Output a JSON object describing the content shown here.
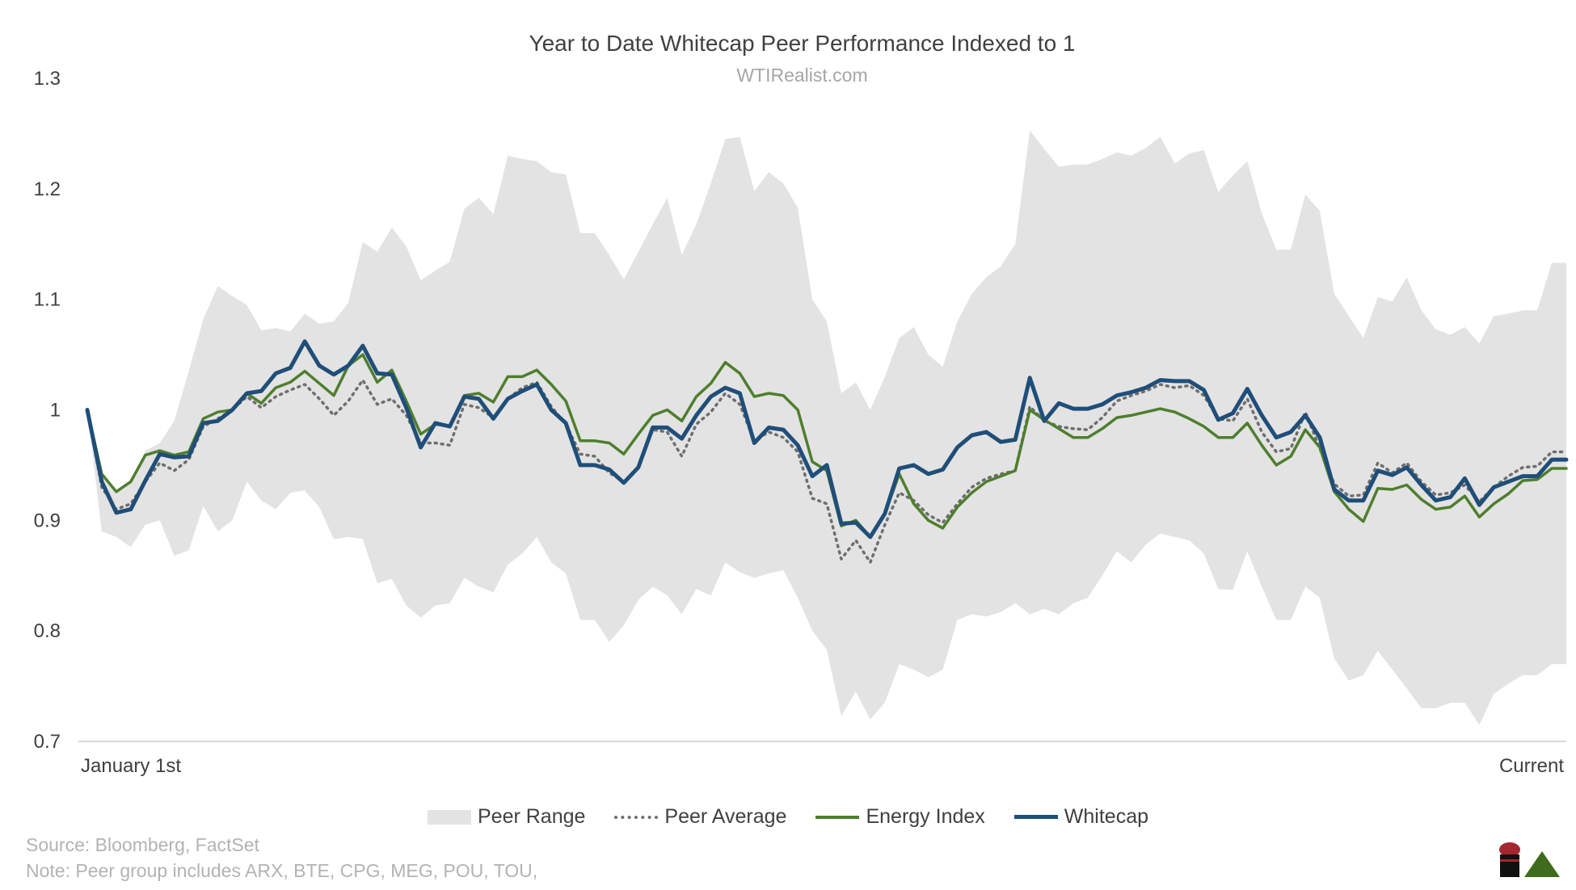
{
  "title": "Year to Date Whitecap Peer Performance Indexed to 1",
  "subtitle": "WTIRealist.com",
  "source_line": "Source: Bloomberg, FactSet",
  "note_line": "Note: Peer group includes ARX, BTE, CPG, MEG, POU, TOU,",
  "chart_data": {
    "type": "line",
    "title": "Year to Date Whitecap Peer Performance Indexed to 1",
    "subtitle": "WTIRealist.com",
    "xlabel": "",
    "ylabel": "",
    "ylim": [
      0.7,
      1.3
    ],
    "y_ticks": [
      "0.7",
      "0.8",
      "0.9",
      "1",
      "1.1",
      "1.2",
      "1.3"
    ],
    "x_tick_labels": [
      "January 1st",
      "Current"
    ],
    "grid": false,
    "legend_position": "bottom",
    "colors": {
      "range": "#e3e3e3",
      "average": "#6e6e6e",
      "energy": "#4e7e2e",
      "whitecap": "#1f4e79"
    },
    "series": [
      {
        "name": "Whitecap",
        "style": "solid-thick",
        "values": [
          1.0,
          0.935,
          0.907,
          0.91,
          0.936,
          0.96,
          0.957,
          0.958,
          0.988,
          0.99,
          1.0,
          1.015,
          1.017,
          1.033,
          1.038,
          1.062,
          1.04,
          1.032,
          1.04,
          1.058,
          1.033,
          1.032,
          1.002,
          0.966,
          0.988,
          0.985,
          1.012,
          1.01,
          0.992,
          1.01,
          1.017,
          1.023,
          1.0,
          0.988,
          0.95,
          0.95,
          0.946,
          0.934,
          0.948,
          0.984,
          0.984,
          0.974,
          0.995,
          1.012,
          1.02,
          1.015,
          0.97,
          0.984,
          0.982,
          0.968,
          0.94,
          0.95,
          0.897,
          0.898,
          0.885,
          0.906,
          0.947,
          0.95,
          0.942,
          0.946,
          0.966,
          0.977,
          0.98,
          0.971,
          0.973,
          1.029,
          0.99,
          1.006,
          1.001,
          1.001,
          1.005,
          1.013,
          1.016,
          1.02,
          1.027,
          1.026,
          1.026,
          1.018,
          0.991,
          0.997,
          1.019,
          0.995,
          0.975,
          0.98,
          0.995,
          0.975,
          0.928,
          0.918,
          0.918,
          0.945,
          0.941,
          0.948,
          0.932,
          0.918,
          0.921,
          0.938,
          0.914,
          0.93,
          0.935,
          0.94,
          0.94,
          0.955,
          0.955
        ]
      },
      {
        "name": "Energy Index",
        "style": "solid",
        "values": [
          1.0,
          0.942,
          0.926,
          0.935,
          0.959,
          0.963,
          0.959,
          0.962,
          0.992,
          0.998,
          1.0,
          1.015,
          1.006,
          1.02,
          1.025,
          1.035,
          1.024,
          1.013,
          1.04,
          1.05,
          1.025,
          1.036,
          1.008,
          0.978,
          0.987,
          0.985,
          1.013,
          1.015,
          1.007,
          1.03,
          1.03,
          1.036,
          1.023,
          1.008,
          0.972,
          0.972,
          0.97,
          0.96,
          0.978,
          0.995,
          1.0,
          0.99,
          1.012,
          1.024,
          1.043,
          1.033,
          1.012,
          1.015,
          1.013,
          1.0,
          0.953,
          0.945,
          0.895,
          0.9,
          0.885,
          0.906,
          0.942,
          0.915,
          0.9,
          0.893,
          0.912,
          0.925,
          0.935,
          0.94,
          0.945,
          1.0,
          0.991,
          0.983,
          0.975,
          0.975,
          0.983,
          0.993,
          0.995,
          0.998,
          1.001,
          0.998,
          0.992,
          0.985,
          0.975,
          0.975,
          0.988,
          0.968,
          0.95,
          0.958,
          0.982,
          0.966,
          0.926,
          0.91,
          0.899,
          0.929,
          0.928,
          0.932,
          0.919,
          0.91,
          0.912,
          0.922,
          0.903,
          0.915,
          0.924,
          0.936,
          0.937,
          0.947,
          0.947
        ]
      },
      {
        "name": "Peer Average",
        "style": "dotted",
        "values": [
          1.0,
          0.93,
          0.91,
          0.915,
          0.935,
          0.952,
          0.945,
          0.955,
          0.985,
          0.992,
          1.0,
          1.012,
          1.002,
          1.012,
          1.018,
          1.023,
          1.01,
          0.995,
          1.008,
          1.027,
          1.005,
          1.01,
          0.995,
          0.97,
          0.97,
          0.968,
          1.005,
          1.002,
          0.993,
          1.01,
          1.02,
          1.025,
          1.003,
          0.987,
          0.96,
          0.958,
          0.943,
          0.935,
          0.948,
          0.982,
          0.98,
          0.958,
          0.987,
          0.998,
          1.015,
          1.005,
          0.972,
          0.98,
          0.975,
          0.962,
          0.92,
          0.915,
          0.865,
          0.882,
          0.862,
          0.896,
          0.925,
          0.918,
          0.905,
          0.898,
          0.915,
          0.93,
          0.938,
          0.942,
          0.945,
          1.003,
          0.99,
          0.985,
          0.983,
          0.982,
          0.993,
          1.008,
          1.013,
          1.017,
          1.023,
          1.02,
          1.022,
          1.013,
          0.992,
          0.99,
          1.01,
          0.98,
          0.962,
          0.965,
          0.998,
          0.965,
          0.933,
          0.922,
          0.923,
          0.952,
          0.943,
          0.952,
          0.935,
          0.923,
          0.925,
          0.932,
          0.917,
          0.93,
          0.94,
          0.948,
          0.949,
          0.962,
          0.962
        ]
      }
    ],
    "range": {
      "name": "Peer Range",
      "upper": [
        1.0,
        0.94,
        0.928,
        0.935,
        0.963,
        0.97,
        0.99,
        1.035,
        1.082,
        1.112,
        1.103,
        1.095,
        1.072,
        1.074,
        1.071,
        1.087,
        1.078,
        1.08,
        1.097,
        1.152,
        1.143,
        1.165,
        1.148,
        1.117,
        1.126,
        1.134,
        1.182,
        1.192,
        1.177,
        1.23,
        1.227,
        1.225,
        1.215,
        1.213,
        1.16,
        1.16,
        1.14,
        1.118,
        1.143,
        1.168,
        1.192,
        1.14,
        1.168,
        1.205,
        1.245,
        1.247,
        1.198,
        1.215,
        1.205,
        1.183,
        1.1,
        1.08,
        1.015,
        1.025,
        1.0,
        1.03,
        1.065,
        1.075,
        1.05,
        1.039,
        1.08,
        1.105,
        1.12,
        1.13,
        1.15,
        1.253,
        1.236,
        1.22,
        1.222,
        1.222,
        1.227,
        1.233,
        1.23,
        1.237,
        1.247,
        1.223,
        1.232,
        1.235,
        1.197,
        1.212,
        1.225,
        1.178,
        1.145,
        1.145,
        1.195,
        1.18,
        1.105,
        1.085,
        1.065,
        1.102,
        1.098,
        1.12,
        1.09,
        1.073,
        1.068,
        1.075,
        1.06,
        1.085,
        1.087,
        1.09,
        1.09,
        1.133,
        1.133
      ],
      "lower": [
        1.0,
        0.89,
        0.885,
        0.876,
        0.896,
        0.9,
        0.868,
        0.873,
        0.913,
        0.89,
        0.9,
        0.935,
        0.918,
        0.91,
        0.925,
        0.927,
        0.912,
        0.883,
        0.885,
        0.883,
        0.843,
        0.847,
        0.823,
        0.812,
        0.823,
        0.825,
        0.848,
        0.84,
        0.835,
        0.86,
        0.87,
        0.885,
        0.862,
        0.852,
        0.81,
        0.81,
        0.79,
        0.805,
        0.828,
        0.84,
        0.832,
        0.815,
        0.838,
        0.832,
        0.862,
        0.853,
        0.848,
        0.852,
        0.855,
        0.83,
        0.8,
        0.783,
        0.723,
        0.745,
        0.72,
        0.735,
        0.77,
        0.765,
        0.758,
        0.765,
        0.81,
        0.815,
        0.813,
        0.817,
        0.825,
        0.815,
        0.82,
        0.815,
        0.825,
        0.83,
        0.85,
        0.872,
        0.862,
        0.878,
        0.888,
        0.885,
        0.882,
        0.87,
        0.838,
        0.837,
        0.872,
        0.84,
        0.81,
        0.81,
        0.84,
        0.83,
        0.775,
        0.755,
        0.76,
        0.782,
        0.765,
        0.748,
        0.73,
        0.73,
        0.735,
        0.735,
        0.715,
        0.743,
        0.752,
        0.76,
        0.76,
        0.77,
        0.77
      ]
    }
  }
}
